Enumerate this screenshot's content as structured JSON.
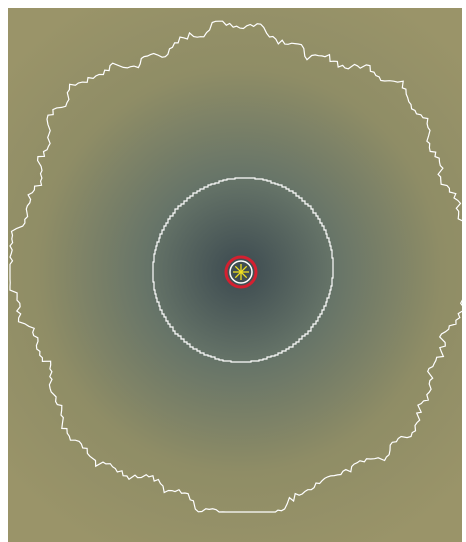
{
  "image": {
    "kind": "radial-gradient-field-with-isocontours",
    "colors": {
      "frame": "#ffffff",
      "center": "#3c4a50",
      "mid": "#667468",
      "outer": "#8f8d66",
      "edge": "#9a9469",
      "contour": "#ffffff",
      "ring_outer": "#d42030",
      "ring_inner": "#ffffff",
      "star": "#f0e020"
    },
    "contours": [
      {
        "name": "outer-contour",
        "shape": "wavy-closed-curve"
      },
      {
        "name": "inner-contour",
        "shape": "stepped-circle"
      }
    ],
    "center_marker": {
      "shape": "double-ring-with-asterisk"
    }
  }
}
